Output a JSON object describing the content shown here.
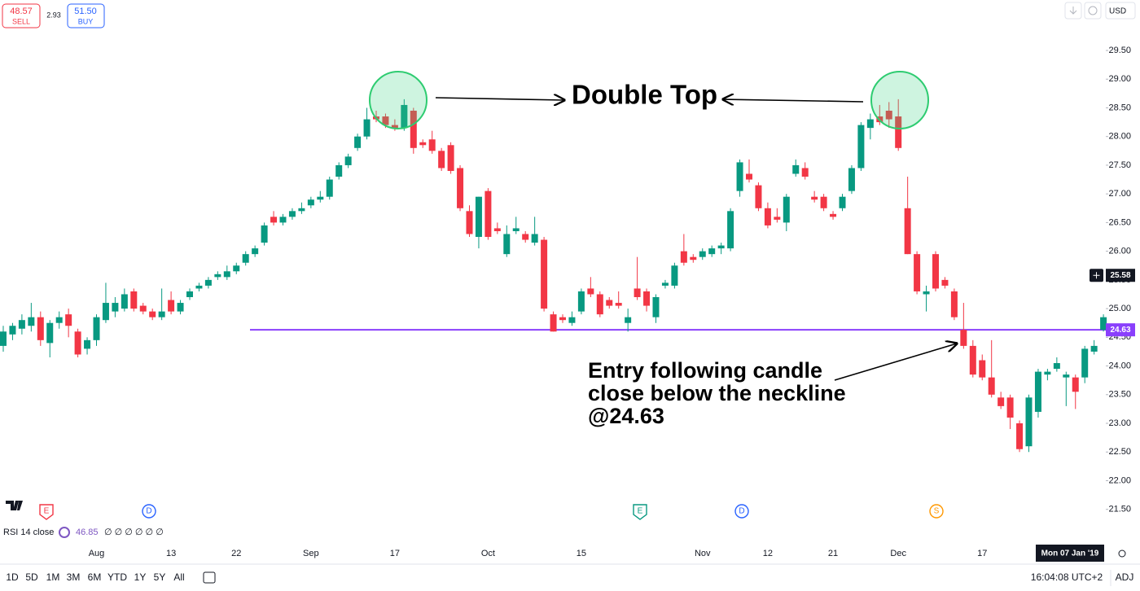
{
  "chart_data": {
    "type": "candlestick",
    "up_color": "#089981",
    "down_color": "#f23645",
    "ylim": [
      20.9,
      30.38
    ],
    "yticks": [
      {
        "value": 21.5,
        "label": "21.50"
      },
      {
        "value": 22,
        "label": "22.00"
      },
      {
        "value": 22.5,
        "label": "22.50"
      },
      {
        "value": 23,
        "label": "23.00"
      },
      {
        "value": 23.5,
        "label": "23.50"
      },
      {
        "value": 24,
        "label": "24.00"
      },
      {
        "value": 24.5,
        "label": "24.50"
      },
      {
        "value": 25,
        "label": "25.00"
      },
      {
        "value": 25.5,
        "label": "25.50"
      },
      {
        "value": 26,
        "label": "26.00"
      },
      {
        "value": 26.5,
        "label": "26.50"
      },
      {
        "value": 27,
        "label": "27.00"
      },
      {
        "value": 27.5,
        "label": "27.50"
      },
      {
        "value": 28,
        "label": "28.00"
      },
      {
        "value": 28.5,
        "label": "28.50"
      },
      {
        "value": 29,
        "label": "29.00"
      },
      {
        "value": 29.5,
        "label": "29.50"
      }
    ],
    "categories": [
      null,
      null,
      null,
      null,
      null,
      null,
      null,
      null,
      null,
      null,
      "Aug",
      null,
      null,
      null,
      null,
      null,
      null,
      null,
      "13",
      null,
      null,
      null,
      null,
      null,
      null,
      "22",
      null,
      null,
      null,
      null,
      null,
      null,
      null,
      "Sep",
      null,
      null,
      null,
      null,
      null,
      null,
      null,
      null,
      "17",
      null,
      null,
      null,
      null,
      null,
      null,
      null,
      null,
      null,
      "Oct",
      null,
      null,
      null,
      null,
      null,
      null,
      null,
      null,
      null,
      "15",
      null,
      null,
      null,
      null,
      null,
      null,
      null,
      null,
      null,
      null,
      null,
      null,
      "Nov",
      null,
      null,
      null,
      null,
      null,
      null,
      "12",
      null,
      null,
      null,
      null,
      null,
      null,
      "21",
      null,
      null,
      null,
      null,
      null,
      null,
      "Dec",
      null,
      null,
      null,
      null,
      null,
      null,
      null,
      null,
      "17",
      null,
      null,
      null,
      null,
      null,
      null,
      null,
      null,
      null,
      null,
      null,
      null,
      null
    ],
    "ohlc": [
      [
        24.35,
        24.7,
        24.25,
        24.6
      ],
      [
        24.55,
        24.75,
        24.45,
        24.7
      ],
      [
        24.65,
        24.9,
        24.55,
        24.8
      ],
      [
        24.7,
        25.1,
        24.6,
        24.85
      ],
      [
        24.85,
        24.95,
        24.35,
        24.45
      ],
      [
        24.4,
        24.8,
        24.15,
        24.75
      ],
      [
        24.75,
        24.95,
        24.65,
        24.85
      ],
      [
        24.9,
        25.0,
        24.5,
        24.7
      ],
      [
        24.6,
        24.65,
        24.15,
        24.2
      ],
      [
        24.3,
        24.5,
        24.2,
        24.45
      ],
      [
        24.45,
        24.9,
        24.35,
        24.85
      ],
      [
        24.8,
        25.45,
        24.75,
        25.1
      ],
      [
        24.95,
        25.2,
        24.85,
        25.1
      ],
      [
        25.0,
        25.35,
        24.95,
        25.25
      ],
      [
        25.3,
        25.35,
        24.95,
        25.0
      ],
      [
        25.05,
        25.1,
        24.9,
        24.95
      ],
      [
        24.95,
        25.0,
        24.8,
        24.85
      ],
      [
        24.85,
        25.35,
        24.8,
        24.95
      ],
      [
        25.15,
        25.3,
        24.9,
        24.95
      ],
      [
        24.95,
        25.15,
        24.9,
        25.1
      ],
      [
        25.2,
        25.35,
        25.15,
        25.3
      ],
      [
        25.35,
        25.45,
        25.3,
        25.4
      ],
      [
        25.4,
        25.55,
        25.35,
        25.5
      ],
      [
        25.55,
        25.65,
        25.5,
        25.6
      ],
      [
        25.55,
        25.75,
        25.5,
        25.65
      ],
      [
        25.65,
        25.8,
        25.6,
        25.75
      ],
      [
        25.8,
        26.0,
        25.75,
        25.95
      ],
      [
        25.95,
        26.1,
        25.9,
        26.05
      ],
      [
        26.15,
        26.5,
        26.1,
        26.45
      ],
      [
        26.6,
        26.7,
        26.45,
        26.5
      ],
      [
        26.5,
        26.65,
        26.45,
        26.6
      ],
      [
        26.6,
        26.75,
        26.55,
        26.7
      ],
      [
        26.7,
        26.85,
        26.65,
        26.75
      ],
      [
        26.8,
        26.95,
        26.75,
        26.9
      ],
      [
        26.9,
        27.05,
        26.85,
        26.95
      ],
      [
        26.95,
        27.3,
        26.9,
        27.25
      ],
      [
        27.3,
        27.55,
        27.25,
        27.5
      ],
      [
        27.5,
        27.7,
        27.45,
        27.65
      ],
      [
        27.8,
        28.05,
        27.75,
        28.0
      ],
      [
        28.0,
        28.5,
        27.95,
        28.3
      ],
      [
        28.35,
        28.45,
        28.25,
        28.3
      ],
      [
        28.35,
        28.4,
        28.15,
        28.2
      ],
      [
        28.2,
        28.3,
        28.1,
        28.15
      ],
      [
        28.15,
        28.65,
        28.1,
        28.55
      ],
      [
        28.45,
        28.5,
        27.7,
        27.8
      ],
      [
        27.9,
        27.95,
        27.8,
        27.85
      ],
      [
        27.95,
        28.1,
        27.7,
        27.75
      ],
      [
        27.75,
        27.8,
        27.4,
        27.45
      ],
      [
        27.85,
        27.9,
        27.35,
        27.4
      ],
      [
        27.45,
        27.5,
        26.7,
        26.75
      ],
      [
        26.7,
        26.8,
        26.25,
        26.3
      ],
      [
        26.25,
        26.95,
        26.05,
        26.95
      ],
      [
        27.05,
        27.1,
        26.2,
        26.25
      ],
      [
        26.4,
        26.5,
        26.3,
        26.35
      ],
      [
        25.95,
        26.45,
        25.9,
        26.3
      ],
      [
        26.35,
        26.6,
        26.3,
        26.4
      ],
      [
        26.3,
        26.35,
        26.15,
        26.2
      ],
      [
        26.15,
        26.6,
        26.1,
        26.3
      ],
      [
        26.2,
        26.25,
        24.95,
        25.0
      ],
      [
        24.9,
        24.95,
        24.6,
        24.6
      ],
      [
        24.85,
        24.9,
        24.75,
        24.8
      ],
      [
        24.75,
        24.95,
        24.7,
        24.85
      ],
      [
        24.95,
        25.35,
        24.9,
        25.3
      ],
      [
        25.35,
        25.55,
        25.2,
        25.25
      ],
      [
        25.25,
        25.3,
        24.85,
        24.9
      ],
      [
        25.15,
        25.2,
        25.0,
        25.05
      ],
      [
        25.1,
        25.3,
        25.0,
        25.05
      ],
      [
        24.75,
        25.0,
        24.6,
        24.85
      ],
      [
        25.35,
        25.9,
        25.15,
        25.2
      ],
      [
        25.3,
        25.35,
        24.95,
        25.05
      ],
      [
        24.85,
        25.25,
        24.75,
        25.2
      ],
      [
        25.4,
        25.5,
        25.35,
        25.45
      ],
      [
        25.4,
        25.8,
        25.35,
        25.75
      ],
      [
        26.0,
        26.3,
        25.75,
        25.8
      ],
      [
        25.9,
        25.95,
        25.8,
        25.85
      ],
      [
        25.9,
        26.05,
        25.85,
        26.0
      ],
      [
        25.95,
        26.1,
        25.9,
        26.05
      ],
      [
        26.05,
        26.15,
        25.95,
        26.1
      ],
      [
        26.05,
        26.75,
        26.0,
        26.7
      ],
      [
        27.05,
        27.6,
        26.95,
        27.55
      ],
      [
        27.35,
        27.6,
        27.2,
        27.25
      ],
      [
        27.15,
        27.2,
        26.7,
        26.75
      ],
      [
        26.75,
        26.85,
        26.4,
        26.45
      ],
      [
        26.6,
        26.75,
        26.5,
        26.55
      ],
      [
        26.5,
        27.0,
        26.35,
        26.95
      ],
      [
        27.35,
        27.6,
        27.3,
        27.5
      ],
      [
        27.45,
        27.55,
        27.25,
        27.3
      ],
      [
        26.95,
        27.05,
        26.85,
        26.9
      ],
      [
        26.95,
        27.0,
        26.7,
        26.75
      ],
      [
        26.65,
        26.7,
        26.55,
        26.6
      ],
      [
        26.75,
        27.0,
        26.7,
        26.95
      ],
      [
        27.05,
        27.5,
        27.0,
        27.45
      ],
      [
        27.45,
        28.25,
        27.4,
        28.2
      ],
      [
        28.15,
        28.4,
        27.95,
        28.3
      ],
      [
        28.35,
        28.55,
        28.2,
        28.25
      ],
      [
        28.45,
        28.6,
        28.15,
        28.3
      ],
      [
        28.35,
        28.65,
        27.75,
        27.8
      ],
      [
        26.75,
        27.3,
        25.95,
        25.95
      ],
      [
        25.95,
        26.0,
        25.25,
        25.3
      ],
      [
        25.25,
        25.4,
        24.95,
        25.3
      ],
      [
        25.95,
        26.0,
        25.3,
        25.35
      ],
      [
        25.5,
        25.55,
        25.35,
        25.4
      ],
      [
        25.3,
        25.35,
        24.8,
        24.85
      ],
      [
        24.63,
        25.1,
        24.3,
        24.35
      ],
      [
        24.35,
        24.45,
        23.8,
        23.85
      ],
      [
        24.1,
        24.2,
        23.75,
        23.8
      ],
      [
        23.8,
        24.45,
        23.45,
        23.5
      ],
      [
        23.45,
        23.55,
        23.25,
        23.3
      ],
      [
        23.45,
        23.5,
        22.9,
        23.1
      ],
      [
        23.0,
        23.05,
        22.5,
        22.55
      ],
      [
        22.6,
        23.5,
        22.5,
        23.45
      ],
      [
        23.2,
        23.95,
        23.1,
        23.9
      ],
      [
        23.85,
        23.95,
        23.75,
        23.9
      ],
      [
        23.95,
        24.15,
        23.9,
        24.05
      ],
      [
        23.8,
        23.9,
        23.3,
        23.85
      ],
      [
        23.8,
        23.85,
        23.25,
        23.55
      ],
      [
        23.8,
        24.35,
        23.7,
        24.3
      ],
      [
        24.25,
        24.45,
        24.2,
        24.35
      ],
      [
        24.63,
        24.9,
        24.6,
        24.85
      ]
    ],
    "neckline": 24.63,
    "neckline_color": "#8a3ffc",
    "crosshair_price": 25.58,
    "crosshair_date": "Mon 07 Jan '19",
    "annotations": {
      "double_top": "Double Top",
      "entry": [
        "Entry following candle",
        "close below the neckline",
        "@24.63"
      ]
    }
  },
  "ui": {
    "sell_price": "48.57",
    "sell": "SELL",
    "spread": "2.93",
    "buy_price": "51.50",
    "buy": "BUY",
    "currency": "USD",
    "events": [
      "E",
      "D",
      "E",
      "D",
      "S"
    ],
    "indicator": {
      "name": "RSI 14 close",
      "value": "46.85",
      "empty": "∅ ∅ ∅ ∅ ∅ ∅"
    },
    "ranges": [
      "1D",
      "5D",
      "1M",
      "3M",
      "6M",
      "YTD",
      "1Y",
      "5Y",
      "All"
    ],
    "clock": "16:04:08 UTC+2",
    "adj": "ADJ"
  }
}
